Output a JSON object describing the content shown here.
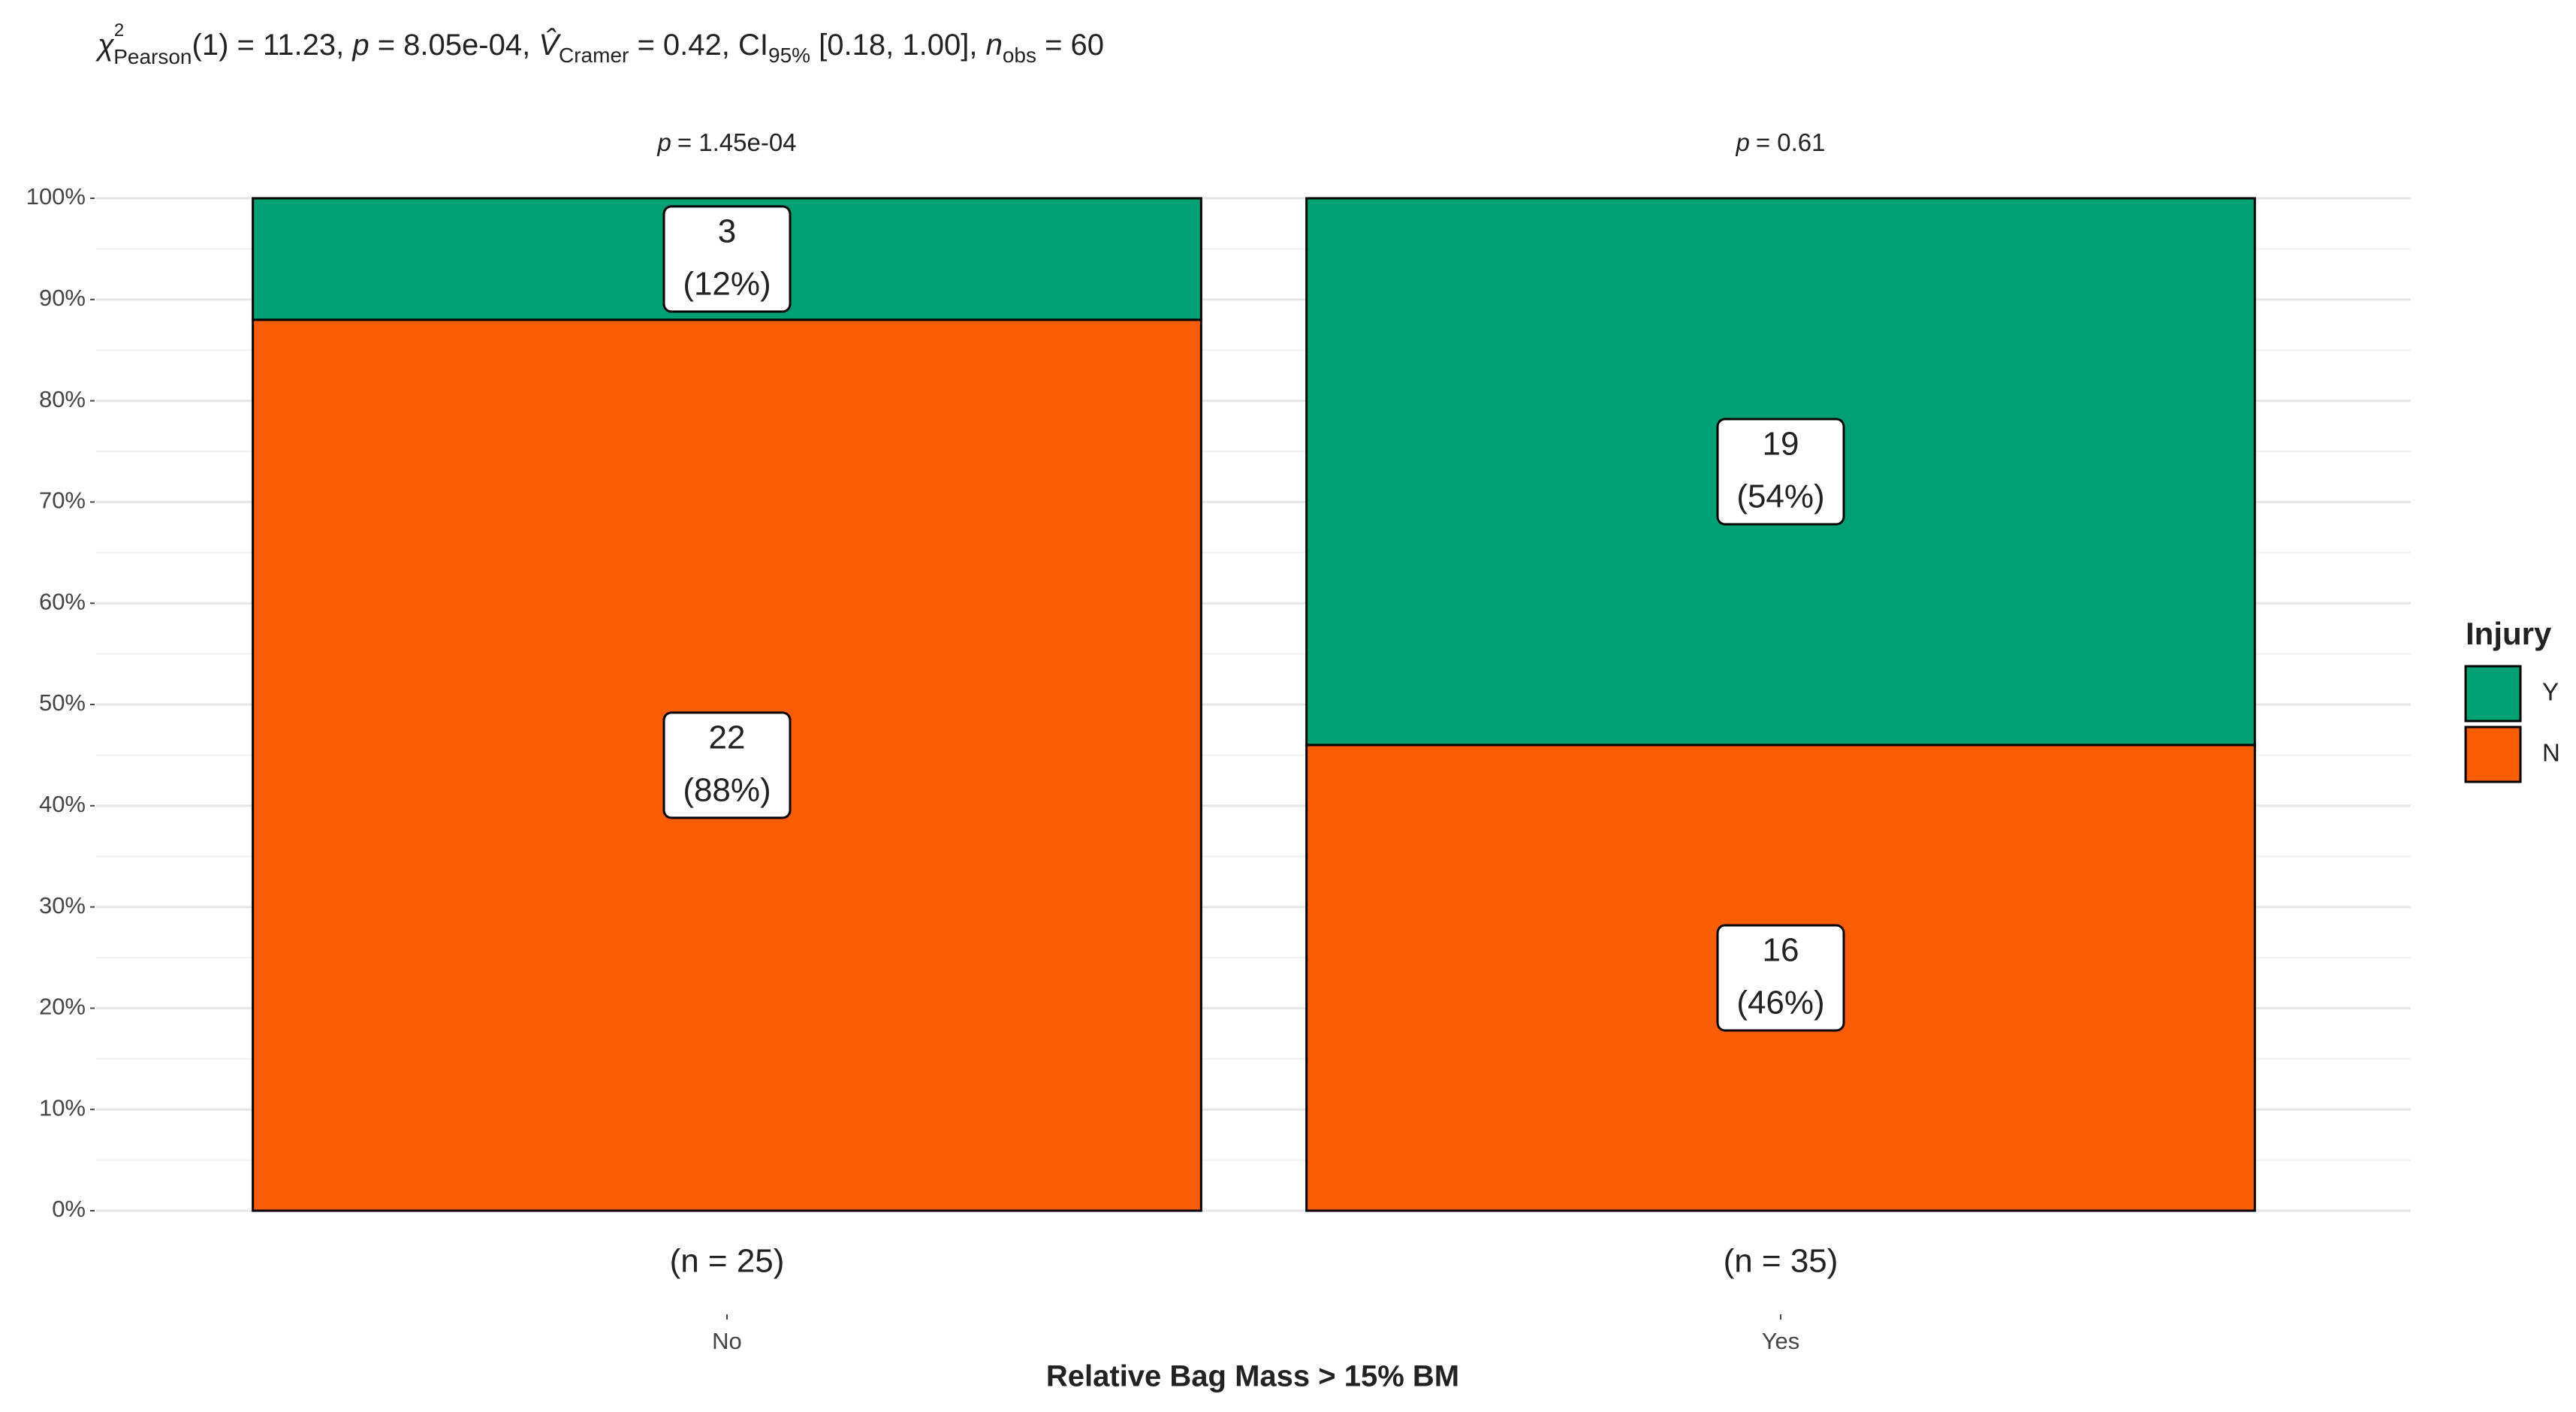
{
  "chart_data": {
    "type": "stacked_bar",
    "subtitle": [
      "χ",
      "2",
      "Pearson",
      "(1) = 11.23, ",
      "p",
      " = 8.05e-04, ",
      "V̂",
      "Cramer",
      " = 0.42, CI",
      "95%",
      " [0.18, 1.00], ",
      "n",
      "obs",
      " = 60"
    ],
    "categories": [
      "No",
      "Yes"
    ],
    "category_sublabels": [
      "(n = 25)",
      "(n = 35)"
    ],
    "p_labels": [
      [
        "p",
        "= 1.45e-04"
      ],
      [
        "p",
        "= 0.61"
      ]
    ],
    "x_label": "Relative Bag Mass > 15% BM",
    "legend_title": "Injury",
    "series": [
      {
        "name": "N",
        "color": "#f95d06",
        "values": [
          88,
          46
        ],
        "value_labels": [
          "(88%)",
          "(46%)"
        ],
        "counts": [
          22,
          16
        ]
      },
      {
        "name": "Y",
        "color": "#009f74",
        "values": [
          12,
          54
        ],
        "value_labels": [
          "(12%)",
          "(54%)"
        ],
        "counts": [
          3,
          19
        ]
      }
    ],
    "ylim": [
      0,
      100
    ],
    "yticks": [
      {
        "value": 0,
        "label": "0%"
      },
      {
        "value": 10,
        "label": "10%"
      },
      {
        "value": 20,
        "label": "20%"
      },
      {
        "value": 30,
        "label": "30%"
      },
      {
        "value": 40,
        "label": "40%"
      },
      {
        "value": 50,
        "label": "50%"
      },
      {
        "value": 60,
        "label": "60%"
      },
      {
        "value": 70,
        "label": "70%"
      },
      {
        "value": 80,
        "label": "80%"
      },
      {
        "value": 90,
        "label": "90%"
      },
      {
        "value": 100,
        "label": "100%"
      }
    ],
    "grid": true,
    "legend_position": "right"
  }
}
